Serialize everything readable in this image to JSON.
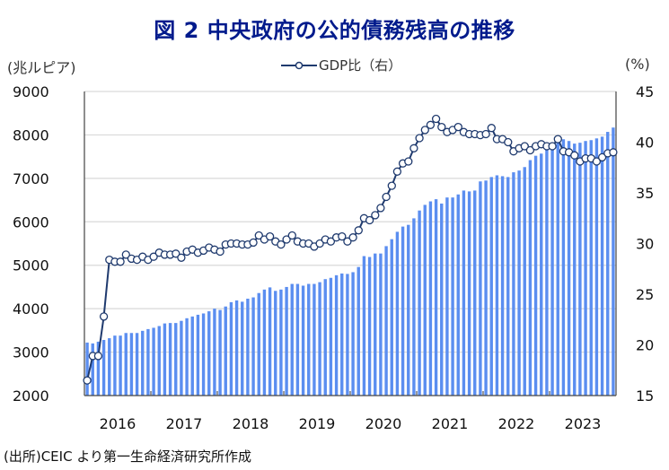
{
  "title": "図 2  中央政府の公的債務残高の推移",
  "source": "(出所)CEIC より第一生命経済研究所作成",
  "colors": {
    "bar": "#5b8ef0",
    "line": "#1f3a6e",
    "grid": "#d9d9d9",
    "title": "#001a8c"
  },
  "chart_data": {
    "type": "bar+line",
    "title": "図 2  中央政府の公的債務残高の推移",
    "ylabel_left": "(兆ルピア)",
    "ylabel_right": "(%)",
    "legend": [
      {
        "label": "GDP比（右）",
        "marker": "open-circle",
        "position": "top-center"
      }
    ],
    "x_tick_labels": [
      "2016",
      "2017",
      "2018",
      "2019",
      "2020",
      "2021",
      "2022",
      "2023"
    ],
    "y_left": {
      "min": 2000,
      "max": 9000,
      "ticks": [
        "2000",
        "3000",
        "4000",
        "5000",
        "6000",
        "7000",
        "8000",
        "9000"
      ]
    },
    "y_right": {
      "min": 15,
      "max": 45,
      "ticks": [
        "15",
        "20",
        "25",
        "30",
        "35",
        "40",
        "45"
      ]
    },
    "grid": true,
    "frequency": "monthly",
    "start": "2016-01",
    "end": "2023-12",
    "series": [
      {
        "name": "公的債務残高",
        "type": "bar",
        "axis": "left",
        "values": [
          3220,
          3200,
          3240,
          3280,
          3320,
          3380,
          3380,
          3440,
          3440,
          3440,
          3490,
          3530,
          3560,
          3600,
          3660,
          3670,
          3670,
          3720,
          3780,
          3820,
          3860,
          3890,
          3940,
          4000,
          3970,
          4050,
          4150,
          4190,
          4160,
          4230,
          4260,
          4360,
          4440,
          4490,
          4410,
          4440,
          4500,
          4570,
          4570,
          4530,
          4570,
          4570,
          4610,
          4680,
          4710,
          4770,
          4810,
          4800,
          4840,
          4960,
          5210,
          5190,
          5270,
          5270,
          5440,
          5600,
          5770,
          5890,
          5930,
          6080,
          6260,
          6390,
          6470,
          6520,
          6420,
          6560,
          6560,
          6630,
          6720,
          6700,
          6720,
          6930,
          6950,
          7030,
          7070,
          7050,
          7030,
          7140,
          7180,
          7260,
          7420,
          7520,
          7570,
          7670,
          7720,
          7860,
          7900,
          7860,
          7800,
          7820,
          7860,
          7880,
          7920,
          7960,
          8070,
          8170
        ]
      },
      {
        "name": "GDP比（右）",
        "type": "line",
        "axis": "right",
        "values": [
          16.5,
          18.9,
          18.9,
          22.8,
          28.4,
          28.2,
          28.2,
          28.9,
          28.5,
          28.4,
          28.7,
          28.4,
          28.7,
          29.1,
          28.9,
          28.9,
          29.0,
          28.6,
          29.2,
          29.4,
          29.1,
          29.3,
          29.6,
          29.4,
          29.2,
          29.9,
          30.0,
          30.0,
          29.9,
          29.9,
          30.1,
          30.8,
          30.4,
          30.7,
          30.2,
          29.9,
          30.4,
          30.8,
          30.2,
          30.0,
          30.0,
          29.7,
          30.0,
          30.4,
          30.2,
          30.6,
          30.7,
          30.2,
          30.6,
          31.3,
          32.5,
          32.3,
          32.8,
          33.5,
          34.6,
          35.7,
          37.1,
          37.9,
          38.1,
          39.4,
          40.4,
          41.2,
          41.7,
          42.3,
          41.5,
          41.0,
          41.2,
          41.5,
          41.0,
          40.8,
          40.8,
          40.7,
          40.8,
          41.4,
          40.3,
          40.3,
          40.0,
          39.1,
          39.4,
          39.6,
          39.2,
          39.6,
          39.8,
          39.6,
          39.6,
          40.3,
          39.1,
          39.0,
          38.7,
          38.1,
          38.4,
          38.4,
          38.1,
          38.5,
          38.9,
          39.0
        ]
      }
    ]
  }
}
